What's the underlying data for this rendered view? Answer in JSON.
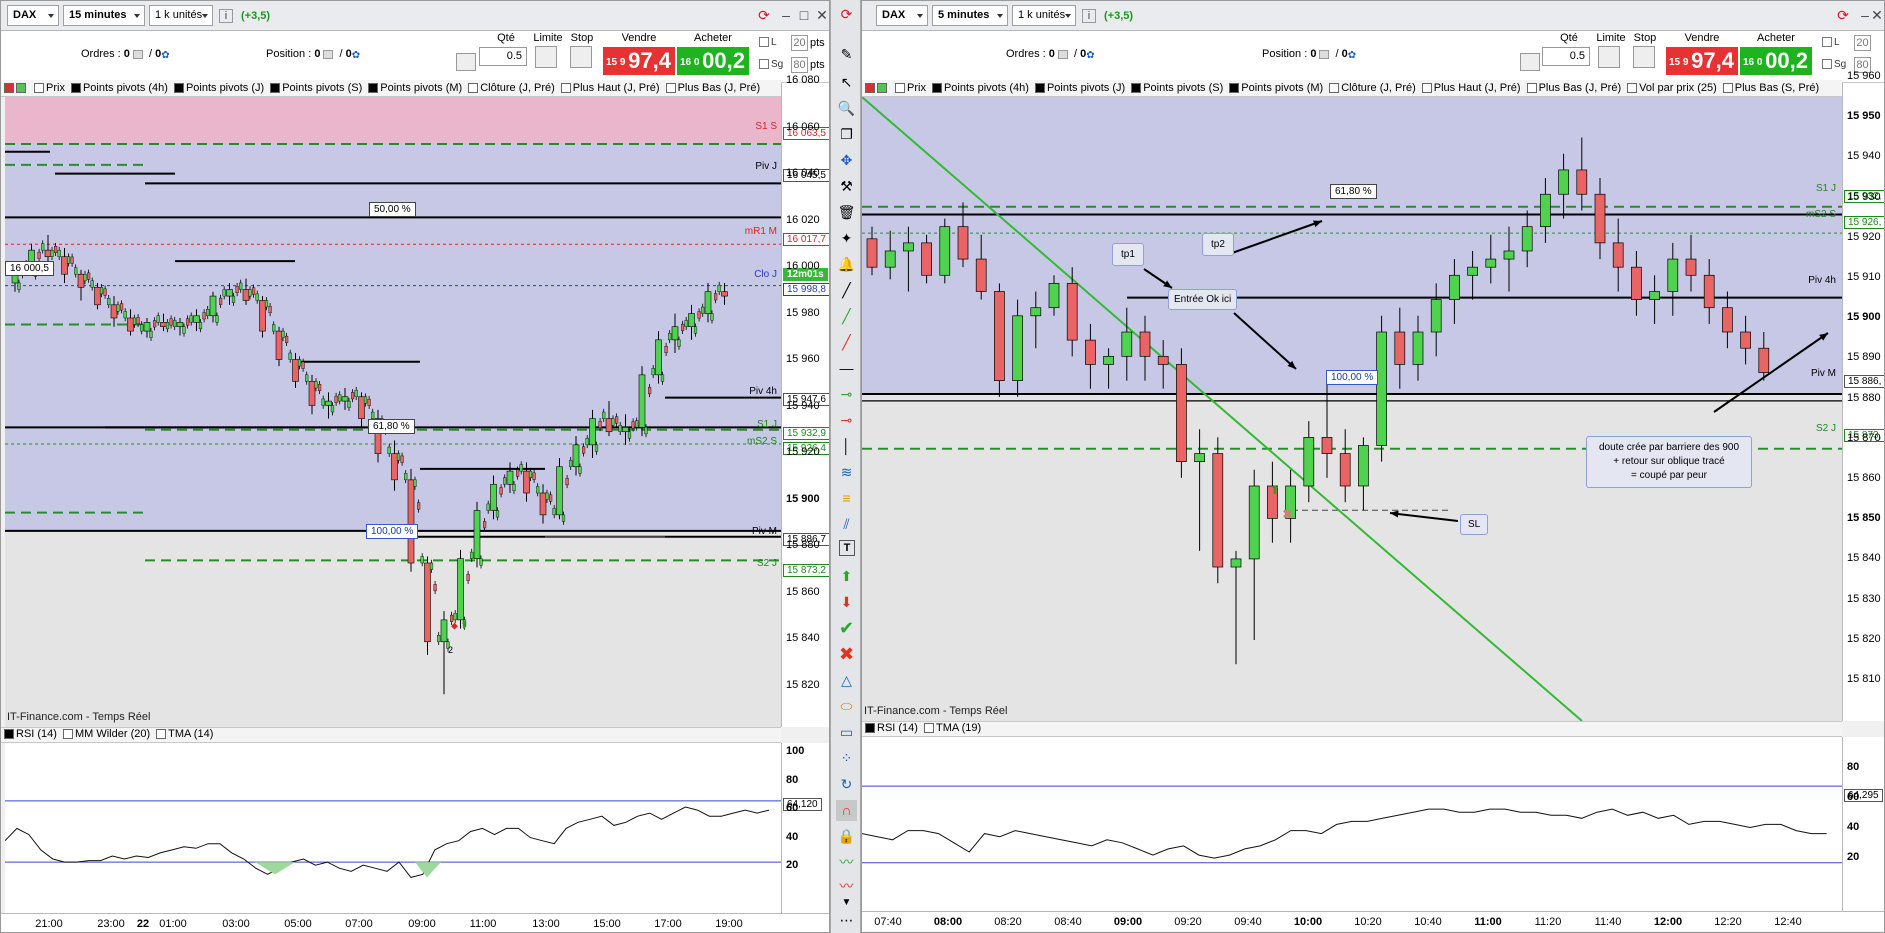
{
  "left": {
    "instrument": "DAX",
    "timeframe": "15 minutes",
    "units": "1 k unités",
    "change": "(+3,5)",
    "orders_label": "Ordres :",
    "orders_val1": "0",
    "orders_val2": "0",
    "position_label": "Position :",
    "position_val1": "0",
    "position_val2": "0",
    "qty_label": "Qté",
    "qty_value": "0.5",
    "limit_label": "Limite",
    "stop_label": "Stop",
    "sell_label": "Vendre",
    "buy_label": "Acheter",
    "sell_small": "15 9",
    "sell_big": "97,4",
    "buy_small": "16 0",
    "buy_big": "00,2",
    "cb_l": "L",
    "cb_sg": "Sg",
    "pts1": "20",
    "pts2": "80",
    "pts_label": "pts",
    "legend": [
      "Prix",
      "Points pivots (4h)",
      "Points pivots (J)",
      "Points pivots (S)",
      "Points pivots (M)",
      "Clôture (J, Pré)",
      "Plus Haut (J, Pré)",
      "Plus Bas (J, Pré)"
    ],
    "price_axis": [
      "16 080",
      "16 060",
      "16 040",
      "16 020",
      "16 000",
      "15 980",
      "15 960",
      "15 940",
      "15 920",
      "15 900",
      "15 880",
      "15 860",
      "15 840",
      "15 820"
    ],
    "tags": {
      "s1s": "16 063,5",
      "pivj": "16 045,5",
      "mr1m": "16 017,7",
      "timer": "12m01s",
      "cloj": "15 998,8",
      "piv4h": "15 947,6",
      "s1j": "15 932,9",
      "ms2s": "15 926,4",
      "pivm": "15 886,7",
      "s2j": "15 873,2"
    },
    "plabels": {
      "s1s": "S1 S",
      "pivj": "Piv J",
      "mr1m": "mR1 M",
      "cloj": "Clo J",
      "piv4h": "Piv 4h",
      "s1j": "S1 J",
      "ms2s": "mS2 S",
      "pivm": "Piv M",
      "s2j": "S2 J"
    },
    "ann_50": "50,00 %",
    "ann_618": "61,80 %",
    "ann_100": "100,00 %",
    "ann_price": "16 000,5",
    "trade_label": "2",
    "source": "IT-Finance.com - Temps Réel",
    "rsi_legend": [
      "RSI (14)",
      "MM Wilder (20)",
      "TMA (14)"
    ],
    "rsi_axis": [
      "100",
      "80",
      "60",
      "40",
      "20"
    ],
    "rsi_value": "64,120",
    "time_axis": [
      "21:00",
      "23:00",
      "22",
      "01:00",
      "03:00",
      "05:00",
      "07:00",
      "09:00",
      "11:00",
      "13:00",
      "15:00",
      "17:00",
      "19:00"
    ]
  },
  "right": {
    "instrument": "DAX",
    "timeframe": "5 minutes",
    "units": "1 k unités",
    "change": "(+3,5)",
    "orders_label": "Ordres :",
    "orders_val1": "0",
    "orders_val2": "0",
    "position_label": "Position :",
    "position_val1": "0",
    "position_val2": "0",
    "qty_label": "Qté",
    "qty_value": "0.5",
    "limit_label": "Limite",
    "stop_label": "Stop",
    "sell_label": "Vendre",
    "buy_label": "Acheter",
    "sell_small": "15 9",
    "sell_big": "97,4",
    "buy_small": "16 0",
    "buy_big": "00,2",
    "cb_l": "L",
    "cb_sg": "Sg",
    "pts1": "20",
    "pts2": "80",
    "pts_label": "pts",
    "legend": [
      "Prix",
      "Points pivots (4h)",
      "Points pivots (J)",
      "Points pivots (S)",
      "Points pivots (M)",
      "Clôture (J, Pré)",
      "Plus Haut (J, Pré)",
      "Plus Bas (J, Pré)",
      "Vol par prix (25)",
      "Plus Bas (S, Pré)"
    ],
    "price_axis": [
      "15 960",
      "15 950",
      "15 940",
      "15 930",
      "15 920",
      "15 910",
      "15 900",
      "15 890",
      "15 880",
      "15 870",
      "15 860",
      "15 850",
      "15 840",
      "15 830",
      "15 820",
      "15 810"
    ],
    "tags": {
      "s1j": "15 932,",
      "ms2s": "15 926,",
      "pivm": "15 886,",
      "s2j": "15 873,"
    },
    "plabels": {
      "s1j": "S1 J",
      "ms2s": "mS2 S",
      "piv4h": "Piv 4h",
      "pivm": "Piv M",
      "s2j": "S2 J"
    },
    "ann_618": "61,80 %",
    "ann_100": "100,00 %",
    "note_tp1": "tp1",
    "note_tp2": "tp2",
    "note_entry": "Entrée Ok ici",
    "note_sl": "SL",
    "note_doubt_l1": "doute crée par barriere des 900",
    "note_doubt_l2": "+ retour sur oblique tracé",
    "note_doubt_l3": "= coupé par peur",
    "source": "IT-Finance.com - Temps Réel",
    "rsi_legend": [
      "RSI (14)",
      "TMA (19)"
    ],
    "rsi_axis": [
      "80",
      "60",
      "40",
      "20"
    ],
    "rsi_value": "64,295",
    "time_axis": [
      "07:40",
      "08:00",
      "08:20",
      "08:40",
      "09:00",
      "09:20",
      "09:40",
      "10:00",
      "10:20",
      "10:40",
      "11:00",
      "11:20",
      "11:40",
      "12:00",
      "12:20",
      "12:40"
    ]
  },
  "chart_data": [
    {
      "type": "candlestick",
      "title": "DAX 15 minutes",
      "y_range": [
        15810,
        16085
      ],
      "series": [
        {
          "name": "Prix",
          "ohlc": [
            [
              16000,
              16010,
              15996,
              16006
            ],
            [
              16006,
              16018,
              16004,
              16015
            ],
            [
              16015,
              16022,
              16010,
              16012
            ],
            [
              16012,
              16016,
              16000,
              16004
            ],
            [
              16004,
              16006,
              15992,
              15998
            ],
            [
              15998,
              16000,
              15988,
              15990
            ],
            [
              15990,
              15994,
              15980,
              15984
            ],
            [
              15984,
              15988,
              15976,
              15978
            ],
            [
              15978,
              15984,
              15975,
              15982
            ],
            [
              15982,
              15986,
              15978,
              15980
            ],
            [
              15980,
              15984,
              15976,
              15982
            ],
            [
              15982,
              15988,
              15978,
              15985
            ],
            [
              15985,
              15996,
              15982,
              15994
            ],
            [
              15994,
              16000,
              15990,
              15997
            ],
            [
              15997,
              16002,
              15990,
              15992
            ],
            [
              15992,
              15994,
              15975,
              15978
            ],
            [
              15978,
              15980,
              15962,
              15965
            ],
            [
              15965,
              15968,
              15952,
              15955
            ],
            [
              15955,
              15958,
              15940,
              15944
            ],
            [
              15944,
              15950,
              15938,
              15946
            ],
            [
              15946,
              15952,
              15942,
              15948
            ],
            [
              15948,
              15950,
              15934,
              15938
            ],
            [
              15938,
              15942,
              15918,
              15922
            ],
            [
              15922,
              15928,
              15905,
              15910
            ],
            [
              15910,
              15915,
              15868,
              15872
            ],
            [
              15872,
              15875,
              15830,
              15836
            ],
            [
              15836,
              15850,
              15812,
              15846
            ],
            [
              15846,
              15878,
              15842,
              15874
            ],
            [
              15874,
              15900,
              15870,
              15896
            ],
            [
              15896,
              15912,
              15892,
              15908
            ],
            [
              15908,
              15918,
              15904,
              15914
            ],
            [
              15914,
              15918,
              15900,
              15904
            ],
            [
              15904,
              15908,
              15890,
              15894
            ],
            [
              15894,
              15920,
              15892,
              15916
            ],
            [
              15916,
              15930,
              15912,
              15926
            ],
            [
              15926,
              15942,
              15920,
              15938
            ],
            [
              15938,
              15946,
              15930,
              15932
            ],
            [
              15932,
              15940,
              15926,
              15934
            ],
            [
              15934,
              15962,
              15930,
              15958
            ],
            [
              15958,
              15978,
              15954,
              15974
            ],
            [
              15974,
              15986,
              15968,
              15980
            ],
            [
              15980,
              15990,
              15974,
              15986
            ],
            [
              15986,
              16000,
              15982,
              15996
            ],
            [
              15996,
              16000,
              15990,
              15994
            ]
          ]
        }
      ]
    },
    {
      "type": "candlestick",
      "title": "DAX 5 minutes",
      "y_range": [
        15806,
        15960
      ],
      "series": [
        {
          "name": "Prix",
          "ohlc": [
            [
              15925,
              15928,
              15916,
              15918
            ],
            [
              15918,
              15927,
              15915,
              15922
            ],
            [
              15922,
              15928,
              15912,
              15924
            ],
            [
              15924,
              15926,
              15914,
              15916
            ],
            [
              15916,
              15930,
              15914,
              15928
            ],
            [
              15928,
              15934,
              15918,
              15920
            ],
            [
              15920,
              15926,
              15910,
              15912
            ],
            [
              15912,
              15914,
              15886,
              15890
            ],
            [
              15890,
              15910,
              15886,
              15906
            ],
            [
              15906,
              15912,
              15898,
              15908
            ],
            [
              15908,
              15916,
              15906,
              15914
            ],
            [
              15914,
              15918,
              15896,
              15900
            ],
            [
              15900,
              15904,
              15888,
              15894
            ],
            [
              15894,
              15898,
              15888,
              15896
            ],
            [
              15896,
              15908,
              15890,
              15902
            ],
            [
              15902,
              15906,
              15890,
              15896
            ],
            [
              15896,
              15900,
              15888,
              15894
            ],
            [
              15894,
              15898,
              15866,
              15870
            ],
            [
              15870,
              15878,
              15848,
              15872
            ],
            [
              15872,
              15876,
              15840,
              15844
            ],
            [
              15844,
              15848,
              15820,
              15846
            ],
            [
              15846,
              15868,
              15826,
              15864
            ],
            [
              15864,
              15870,
              15850,
              15856
            ],
            [
              15856,
              15868,
              15850,
              15864
            ],
            [
              15864,
              15880,
              15860,
              15876
            ],
            [
              15876,
              15890,
              15866,
              15872
            ],
            [
              15872,
              15878,
              15860,
              15864
            ],
            [
              15864,
              15876,
              15858,
              15874
            ],
            [
              15874,
              15906,
              15870,
              15902
            ],
            [
              15902,
              15908,
              15888,
              15894
            ],
            [
              15894,
              15906,
              15890,
              15902
            ],
            [
              15902,
              15914,
              15896,
              15910
            ],
            [
              15910,
              15920,
              15904,
              15916
            ],
            [
              15916,
              15922,
              15910,
              15918
            ],
            [
              15918,
              15926,
              15914,
              15920
            ],
            [
              15920,
              15928,
              15912,
              15922
            ],
            [
              15922,
              15932,
              15918,
              15928
            ],
            [
              15928,
              15940,
              15924,
              15936
            ],
            [
              15936,
              15946,
              15930,
              15942
            ],
            [
              15942,
              15950,
              15932,
              15936
            ],
            [
              15936,
              15940,
              15920,
              15924
            ],
            [
              15924,
              15930,
              15912,
              15918
            ],
            [
              15918,
              15922,
              15906,
              15910
            ],
            [
              15910,
              15916,
              15904,
              15912
            ],
            [
              15912,
              15924,
              15906,
              15920
            ],
            [
              15920,
              15926,
              15912,
              15916
            ],
            [
              15916,
              15920,
              15904,
              15908
            ],
            [
              15908,
              15912,
              15898,
              15902
            ],
            [
              15902,
              15906,
              15894,
              15898
            ],
            [
              15898,
              15902,
              15890,
              15892
            ]
          ]
        }
      ]
    }
  ]
}
